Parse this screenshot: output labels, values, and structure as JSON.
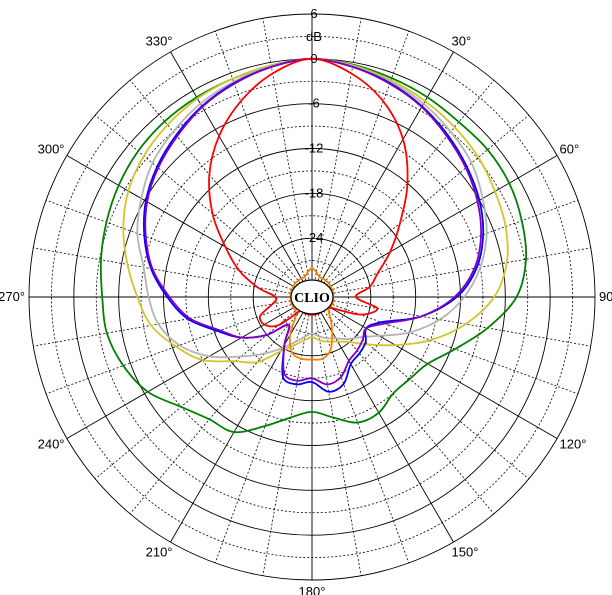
{
  "chart_data": {
    "type": "polar-line",
    "center_label": "CLIO",
    "unit_label": "dB",
    "r_ticks": [
      6,
      0,
      -6,
      -12,
      -18,
      -24
    ],
    "r_range": [
      -30,
      6
    ],
    "angle_labels": [
      {
        "deg": 30,
        "text": "30°"
      },
      {
        "deg": 60,
        "text": "60°"
      },
      {
        "deg": 90,
        "text": "90°"
      },
      {
        "deg": 120,
        "text": "120°"
      },
      {
        "deg": 150,
        "text": "150°"
      },
      {
        "deg": 180,
        "text": "180°"
      },
      {
        "deg": 210,
        "text": "210°"
      },
      {
        "deg": 240,
        "text": "240°"
      },
      {
        "deg": 270,
        "text": "270°"
      },
      {
        "deg": 300,
        "text": "300°"
      },
      {
        "deg": 330,
        "text": "330°"
      }
    ],
    "series": [
      {
        "color": "#008000",
        "angles": [
          0,
          10,
          20,
          30,
          40,
          50,
          60,
          70,
          80,
          90,
          100,
          110,
          120,
          130,
          140,
          150,
          160,
          170,
          180,
          190,
          200,
          210,
          220,
          230,
          240,
          250,
          260,
          270,
          280,
          290,
          300,
          310,
          320,
          330,
          340,
          350,
          360
        ],
        "values": [
          0,
          -0.3,
          -0.7,
          -1.0,
          -1.3,
          -1.2,
          -1.4,
          -2.0,
          -2.8,
          -4.5,
          -8.0,
          -11.5,
          -14.0,
          -14.8,
          -15.0,
          -14.0,
          -14.0,
          -15.5,
          -16.5,
          -15.5,
          -13.5,
          -11.0,
          -10.5,
          -9.0,
          -6.5,
          -5.0,
          -4.0,
          -3.8,
          -3.2,
          -2.6,
          -2.0,
          -1.5,
          -1.2,
          -1.0,
          -0.8,
          -0.4,
          0
        ]
      },
      {
        "color": "#d4c42a",
        "angles": [
          0,
          10,
          20,
          30,
          40,
          50,
          60,
          70,
          80,
          90,
          100,
          110,
          120,
          130,
          140,
          150,
          160,
          170,
          180,
          190,
          200,
          210,
          220,
          230,
          240,
          250,
          260,
          270,
          280,
          290,
          300,
          310,
          320,
          330,
          340,
          350,
          360
        ],
        "values": [
          0,
          -0.4,
          -1.0,
          -1.6,
          -2.2,
          -2.8,
          -3.6,
          -4.3,
          -5.4,
          -7.5,
          -11.0,
          -15.0,
          -19.0,
          -22.0,
          -24.0,
          -25.0,
          -25.5,
          -26.0,
          -26.5,
          -26.0,
          -25.0,
          -23.5,
          -20.5,
          -18.5,
          -15.0,
          -12.5,
          -10.0,
          -8.5,
          -6.8,
          -5.0,
          -3.5,
          -2.5,
          -1.8,
          -1.2,
          -0.8,
          -0.4,
          0
        ]
      },
      {
        "color": "#b4b4b4",
        "angles": [
          0,
          10,
          20,
          30,
          40,
          50,
          60,
          70,
          80,
          90,
          100,
          110,
          120,
          130,
          140,
          150,
          160,
          170,
          180,
          190,
          200,
          210,
          220,
          230,
          240,
          250,
          260,
          270,
          280,
          290,
          300,
          310,
          320,
          330,
          340,
          350,
          360
        ],
        "values": [
          0,
          -0.5,
          -1.2,
          -2.0,
          -3.0,
          -4.0,
          -5.5,
          -7.0,
          -9.0,
          -11.5,
          -14.5,
          -18.0,
          -21.5,
          -23.5,
          -24.5,
          -25.5,
          -26.0,
          -26.5,
          -27.0,
          -26.5,
          -25.5,
          -24.0,
          -22.0,
          -19.5,
          -16.0,
          -13.0,
          -11.0,
          -10.0,
          -9.0,
          -7.0,
          -5.5,
          -4.0,
          -3.0,
          -2.0,
          -1.2,
          -0.5,
          0
        ]
      },
      {
        "color": "#0000ff",
        "angles": [
          0,
          10,
          20,
          30,
          40,
          50,
          60,
          70,
          80,
          90,
          100,
          110,
          120,
          130,
          140,
          150,
          160,
          170,
          180,
          190,
          200,
          210,
          220,
          230,
          240,
          250,
          260,
          270,
          280,
          290,
          300,
          310,
          320,
          330,
          340,
          350,
          360
        ],
        "values": [
          0,
          -0.6,
          -1.4,
          -2.4,
          -3.6,
          -4.8,
          -6.0,
          -7.5,
          -9.5,
          -12.5,
          -17.0,
          -22.0,
          -23.5,
          -22.5,
          -22.0,
          -21.5,
          -19.5,
          -19.0,
          -20.5,
          -20.0,
          -20.5,
          -24.5,
          -27.0,
          -24.0,
          -21.0,
          -18.5,
          -15.0,
          -12.5,
          -10.0,
          -8.0,
          -6.2,
          -4.8,
          -3.6,
          -2.4,
          -1.4,
          -0.6,
          0
        ]
      },
      {
        "color": "#8000c0",
        "angles": [
          0,
          10,
          20,
          30,
          40,
          50,
          60,
          70,
          80,
          90,
          100,
          110,
          120,
          130,
          140,
          150,
          160,
          170,
          180,
          190,
          200,
          210,
          220,
          230,
          240,
          250,
          260,
          270,
          280,
          290,
          300,
          310,
          320,
          330,
          340,
          350,
          360
        ],
        "values": [
          0,
          -0.6,
          -1.5,
          -2.5,
          -3.8,
          -5.0,
          -6.3,
          -7.8,
          -9.8,
          -12.8,
          -17.0,
          -21.5,
          -23.5,
          -23.0,
          -22.5,
          -22.0,
          -20.5,
          -20.0,
          -21.0,
          -20.5,
          -21.0,
          -24.5,
          -27.0,
          -24.0,
          -21.0,
          -18.8,
          -15.3,
          -12.8,
          -10.2,
          -8.2,
          -6.4,
          -5.0,
          -3.8,
          -2.5,
          -1.5,
          -0.6,
          0
        ]
      },
      {
        "color": "#ff8000",
        "angles": [
          0,
          10,
          20,
          30,
          40,
          50,
          60,
          70,
          80,
          90,
          100,
          110,
          120,
          130,
          140,
          150,
          160,
          170,
          180,
          190,
          200,
          210,
          220,
          230,
          240,
          250,
          260,
          270,
          280,
          290,
          300,
          310,
          320,
          330,
          340,
          350,
          360
        ],
        "values": [
          -28.0,
          -28.5,
          -29.0,
          -29.0,
          -29.0,
          -29.0,
          -29.0,
          -29.0,
          -29.0,
          -29.0,
          -29.0,
          -29.0,
          -29.0,
          -29.0,
          -28.0,
          -26.5,
          -24.5,
          -23.5,
          -23.5,
          -23.5,
          -24.0,
          -26.0,
          -28.5,
          -29.0,
          -29.0,
          -29.0,
          -29.0,
          -29.0,
          -29.0,
          -29.0,
          -29.0,
          -29.0,
          -29.0,
          -29.0,
          -29.0,
          -28.5,
          -28.0
        ]
      },
      {
        "color": "#ff0000",
        "angles": [
          0,
          10,
          20,
          30,
          40,
          50,
          60,
          70,
          80,
          90,
          100,
          110,
          120,
          130,
          140,
          150,
          160,
          170,
          180,
          190,
          200,
          210,
          220,
          230,
          240,
          250,
          260,
          270,
          280,
          290,
          300,
          310,
          320,
          330,
          340,
          350,
          360
        ],
        "values": [
          0,
          -1.5,
          -4.0,
          -7.5,
          -12.0,
          -16.5,
          -19.8,
          -22.5,
          -24.0,
          -26.0,
          -23.0,
          -25.0,
          -29.0,
          -29.5,
          -29.5,
          -29.5,
          -29.5,
          -29.5,
          -29.5,
          -29.5,
          -29.5,
          -29.5,
          -29.5,
          -26.0,
          -24.5,
          -24.5,
          -26.5,
          -27.0,
          -24.5,
          -21.5,
          -18.5,
          -14.5,
          -10.5,
          -7.0,
          -4.0,
          -1.5,
          0
        ]
      }
    ]
  }
}
